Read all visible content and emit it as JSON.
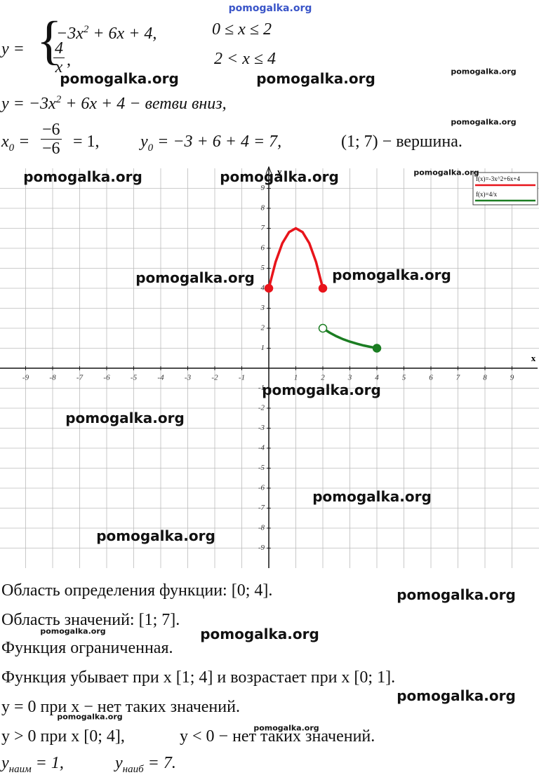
{
  "system": {
    "lhs": "y =",
    "brace": "{",
    "case1": {
      "expr": [
        "−3x",
        "2",
        " + 6x + 4,"
      ],
      "cond": "0 ≤ x ≤ 2"
    },
    "case2": {
      "num": "4",
      "den": "x",
      "tail": ",",
      "cond": "2 < x ≤ 4"
    }
  },
  "line2": [
    "y = −3x",
    "2",
    " + 6x + 4 − ветви вниз,"
  ],
  "line3": {
    "x0": [
      "x",
      "0",
      " ="
    ],
    "frac": {
      "num": "−6",
      "den": "−6"
    },
    "x0res": "= 1,",
    "y0": [
      "y",
      "0",
      " = −3 + 6 + 4 = 7,"
    ],
    "vertex": "(1; 7) − вершина."
  },
  "graph": {
    "xlabel": "x",
    "ylabel": "y",
    "xlim": [
      -10,
      10
    ],
    "ylim": [
      -10,
      10
    ],
    "xticks": [
      -9,
      -8,
      -7,
      -6,
      -5,
      -4,
      -3,
      -2,
      -1,
      1,
      2,
      3,
      4,
      5,
      6,
      7,
      8,
      9
    ],
    "yticks": [
      -9,
      -8,
      -7,
      -6,
      -5,
      -4,
      -3,
      -2,
      -1,
      1,
      2,
      3,
      4,
      5,
      6,
      7,
      8,
      9
    ],
    "curves": [
      {
        "name": "f(x)=-3x^2+6x+4",
        "color": "#e8141b",
        "x": [
          0,
          0.25,
          0.5,
          0.75,
          1,
          1.25,
          1.5,
          1.75,
          2
        ],
        "y": [
          4,
          5.31,
          6.25,
          6.81,
          7,
          6.81,
          6.25,
          5.31,
          4
        ]
      },
      {
        "name": "f(x)=4/x",
        "color": "#1b7d22",
        "x": [
          2,
          2.25,
          2.5,
          2.75,
          3,
          3.25,
          3.5,
          3.75,
          4
        ],
        "y": [
          2,
          1.78,
          1.6,
          1.45,
          1.33,
          1.23,
          1.14,
          1.07,
          1
        ]
      }
    ],
    "points": [
      {
        "x": 0,
        "y": 4,
        "color": "#e8141b",
        "filled": true
      },
      {
        "x": 2,
        "y": 4,
        "color": "#e8141b",
        "filled": true
      },
      {
        "x": 2,
        "y": 2,
        "color": "#1b7d22",
        "filled": false
      },
      {
        "x": 4,
        "y": 1,
        "color": "#1b7d22",
        "filled": true
      }
    ]
  },
  "text_lines": [
    "Область определения функции: [0; 4].",
    "Область значений: [1; 7].",
    "Функция ограниченная.",
    "Функция убывает при x [1; 4] и возрастает при x [0; 1].",
    "y = 0 при x − нет таких значений."
  ],
  "sign_line": [
    "y > 0 при x [0; 4],",
    "y < 0 − нет таких значений."
  ],
  "extrema": {
    "min": [
      "y",
      "наим",
      " = 1,"
    ],
    "max": [
      "y",
      "наиб",
      " = 7."
    ]
  },
  "watermarks": [
    "pomogalka.org",
    "pomogalka.org",
    "pomogalka.org",
    "pomogalka.org",
    "pomogalka.org",
    "pomogalka.org",
    "pomogalka.org",
    "pomogalka.org",
    "pomogalka.org",
    "pomogalka.org",
    "pomogalka.org",
    "pomogalka.org",
    "pomogalka.org",
    "pomogalka.org",
    "pomogalka.org",
    "pomogalka.org",
    "pomogalka.org",
    "pomogalka.org",
    "pomogalka.org",
    "pomogalka.org"
  ]
}
